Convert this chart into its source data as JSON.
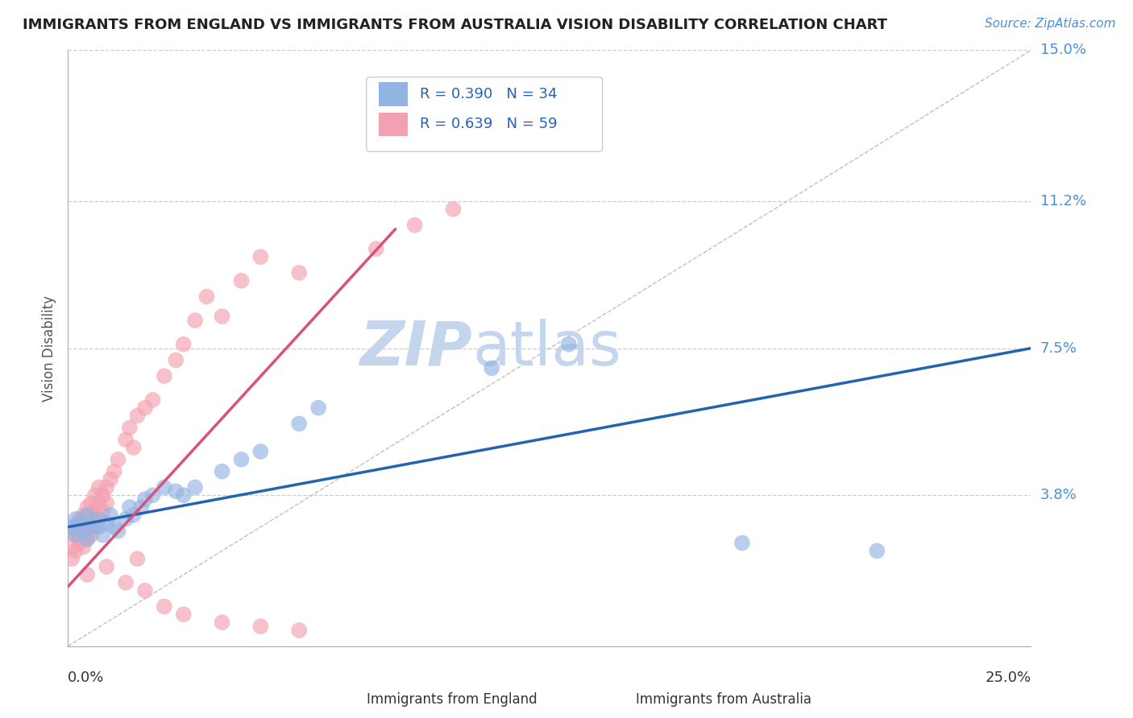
{
  "title": "IMMIGRANTS FROM ENGLAND VS IMMIGRANTS FROM AUSTRALIA VISION DISABILITY CORRELATION CHART",
  "source_text": "Source: ZipAtlas.com",
  "ylabel": "Vision Disability",
  "xlim": [
    0.0,
    0.25
  ],
  "ylim": [
    0.0,
    0.15
  ],
  "yticks": [
    0.038,
    0.075,
    0.112,
    0.15
  ],
  "ytick_labels": [
    "3.8%",
    "7.5%",
    "11.2%",
    "15.0%"
  ],
  "england_R": 0.39,
  "england_N": 34,
  "australia_R": 0.639,
  "australia_N": 59,
  "england_color": "#92b4e3",
  "australia_color": "#f4a0b0",
  "england_line_color": "#2563b0",
  "australia_line_color": "#d9527a",
  "england_scatter_x": [
    0.001,
    0.002,
    0.002,
    0.003,
    0.004,
    0.005,
    0.005,
    0.006,
    0.007,
    0.008,
    0.009,
    0.01,
    0.011,
    0.012,
    0.013,
    0.015,
    0.016,
    0.017,
    0.019,
    0.02,
    0.022,
    0.025,
    0.028,
    0.03,
    0.033,
    0.04,
    0.045,
    0.05,
    0.06,
    0.065,
    0.11,
    0.13,
    0.175,
    0.21
  ],
  "england_scatter_y": [
    0.03,
    0.028,
    0.032,
    0.031,
    0.029,
    0.033,
    0.027,
    0.03,
    0.032,
    0.03,
    0.028,
    0.031,
    0.033,
    0.03,
    0.029,
    0.032,
    0.035,
    0.033,
    0.035,
    0.037,
    0.038,
    0.04,
    0.039,
    0.038,
    0.04,
    0.044,
    0.047,
    0.049,
    0.056,
    0.06,
    0.07,
    0.076,
    0.026,
    0.024
  ],
  "australia_scatter_x": [
    0.001,
    0.001,
    0.002,
    0.002,
    0.002,
    0.003,
    0.003,
    0.003,
    0.004,
    0.004,
    0.004,
    0.005,
    0.005,
    0.005,
    0.006,
    0.006,
    0.006,
    0.007,
    0.007,
    0.007,
    0.008,
    0.008,
    0.008,
    0.009,
    0.009,
    0.01,
    0.01,
    0.011,
    0.012,
    0.013,
    0.015,
    0.016,
    0.017,
    0.018,
    0.02,
    0.022,
    0.025,
    0.028,
    0.03,
    0.033,
    0.036,
    0.04,
    0.045,
    0.05,
    0.06,
    0.08,
    0.09,
    0.1,
    0.11,
    0.005,
    0.01,
    0.015,
    0.018,
    0.02,
    0.025,
    0.03,
    0.04,
    0.05,
    0.06
  ],
  "australia_scatter_y": [
    0.025,
    0.022,
    0.028,
    0.03,
    0.024,
    0.026,
    0.028,
    0.032,
    0.025,
    0.03,
    0.033,
    0.027,
    0.03,
    0.035,
    0.028,
    0.032,
    0.036,
    0.03,
    0.034,
    0.038,
    0.032,
    0.036,
    0.04,
    0.034,
    0.038,
    0.036,
    0.04,
    0.042,
    0.044,
    0.047,
    0.052,
    0.055,
    0.05,
    0.058,
    0.06,
    0.062,
    0.068,
    0.072,
    0.076,
    0.082,
    0.088,
    0.083,
    0.092,
    0.098,
    0.094,
    0.1,
    0.106,
    0.11,
    0.13,
    0.018,
    0.02,
    0.016,
    0.022,
    0.014,
    0.01,
    0.008,
    0.006,
    0.005,
    0.004
  ],
  "watermark_zip": "ZIP",
  "watermark_atlas": "atlas",
  "watermark_color_zip": "#c5d5ee",
  "watermark_color_atlas": "#c5d5ee",
  "background_color": "#ffffff",
  "grid_color": "#cccccc",
  "ref_line_color": "#c0c0c0"
}
